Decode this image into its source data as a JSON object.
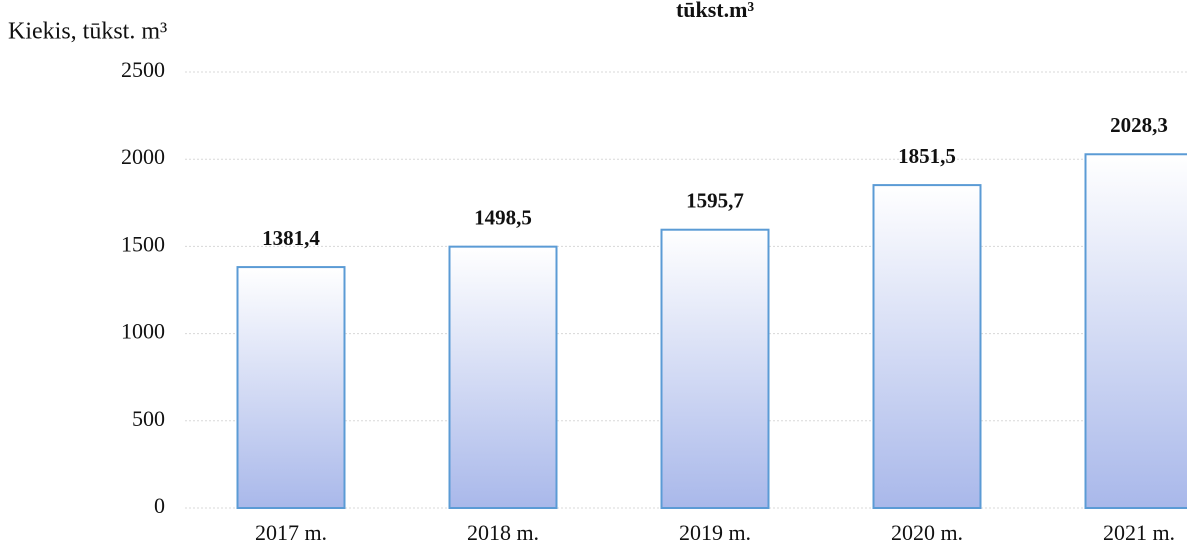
{
  "chart_data": {
    "type": "bar",
    "title": "tūkst.m³",
    "y_label": "Kiekis, tūkst. m³",
    "categories": [
      "2017 m.",
      "2018 m.",
      "2019 m.",
      "2020 m.",
      "2021 m."
    ],
    "values": [
      1381.4,
      1498.5,
      1595.7,
      1851.5,
      2028.3
    ],
    "value_labels": [
      "1381,4",
      "1498,5",
      "1595,7",
      "1851,5",
      "2028,3"
    ],
    "color": "#5b9bd5",
    "ylim": [
      0,
      2500
    ],
    "yticks": [
      0,
      500,
      1000,
      1500,
      2000,
      2500
    ],
    "grid": true
  }
}
